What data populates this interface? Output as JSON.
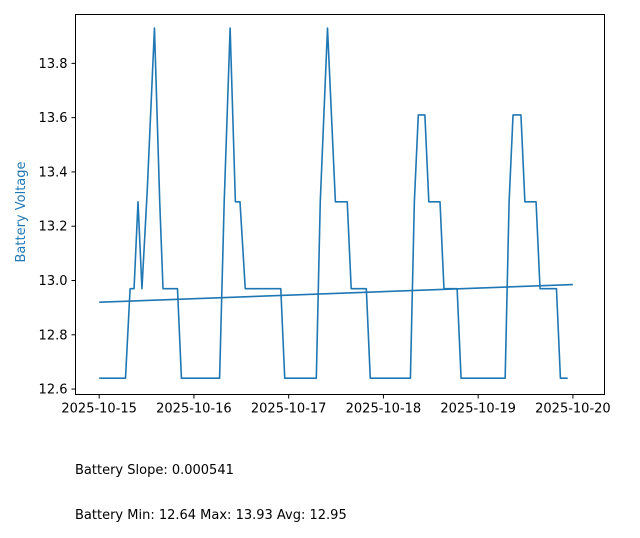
{
  "colors": {
    "series": "#1f77b4",
    "ylabel": "#1f77b4",
    "axes": "#000000"
  },
  "chart_data": {
    "type": "line",
    "title": "",
    "xlabel": "",
    "ylabel": "Battery Voltage",
    "grid": false,
    "xlim": [
      "2025-10-14T18:00",
      "2025-10-20T08:00"
    ],
    "ylim": [
      12.58,
      13.98
    ],
    "xticks": [
      "2025-10-15",
      "2025-10-16",
      "2025-10-17",
      "2025-10-18",
      "2025-10-19",
      "2025-10-20"
    ],
    "yticks": [
      "12.6",
      "12.8",
      "13.0",
      "13.2",
      "13.4",
      "13.6",
      "13.8"
    ],
    "series": [
      {
        "values_x": [
          "2025-10-15T00:00",
          "2025-10-15T06:40",
          "2025-10-15T07:50",
          "2025-10-15T08:50",
          "2025-10-15T09:50",
          "2025-10-15T10:50",
          "2025-10-15T12:10",
          "2025-10-15T14:00",
          "2025-10-15T15:20",
          "2025-10-15T16:10",
          "2025-10-15T19:50",
          "2025-10-15T20:50",
          "2025-10-16T06:30",
          "2025-10-16T07:40",
          "2025-10-16T09:10",
          "2025-10-16T10:30",
          "2025-10-16T11:40",
          "2025-10-16T13:00",
          "2025-10-16T22:00",
          "2025-10-16T23:00",
          "2025-10-17T07:00",
          "2025-10-17T08:00",
          "2025-10-17T09:50",
          "2025-10-17T11:50",
          "2025-10-17T14:50",
          "2025-10-17T15:50",
          "2025-10-17T19:40",
          "2025-10-17T20:40",
          "2025-10-18T06:50",
          "2025-10-18T07:50",
          "2025-10-18T08:50",
          "2025-10-18T10:30",
          "2025-10-18T11:30",
          "2025-10-18T14:20",
          "2025-10-18T15:20",
          "2025-10-18T18:40",
          "2025-10-18T19:40",
          "2025-10-19T06:50",
          "2025-10-19T07:50",
          "2025-10-19T08:50",
          "2025-10-19T10:50",
          "2025-10-19T11:50",
          "2025-10-19T14:40",
          "2025-10-19T15:40",
          "2025-10-19T19:50",
          "2025-10-19T20:50",
          "2025-10-19T22:40"
        ],
        "values_y": [
          12.64,
          12.64,
          12.97,
          12.97,
          13.29,
          12.97,
          13.33,
          13.93,
          13.29,
          12.97,
          12.97,
          12.64,
          12.64,
          13.29,
          13.93,
          13.29,
          13.29,
          12.97,
          12.97,
          12.64,
          12.64,
          13.29,
          13.93,
          13.29,
          13.29,
          12.97,
          12.97,
          12.64,
          12.64,
          13.29,
          13.61,
          13.61,
          13.29,
          13.29,
          12.97,
          12.97,
          12.64,
          12.64,
          13.29,
          13.61,
          13.61,
          13.29,
          13.29,
          12.97,
          12.97,
          12.64,
          12.64
        ]
      },
      {
        "values_x": [
          "2025-10-15T00:00",
          "2025-10-19T23:59"
        ],
        "values_y": [
          12.92,
          12.985
        ]
      }
    ]
  },
  "stats": {
    "slope_line": "Battery Slope: 0.000541",
    "summary_line": "Battery Min: 12.64 Max: 13.93 Avg: 12.95"
  }
}
